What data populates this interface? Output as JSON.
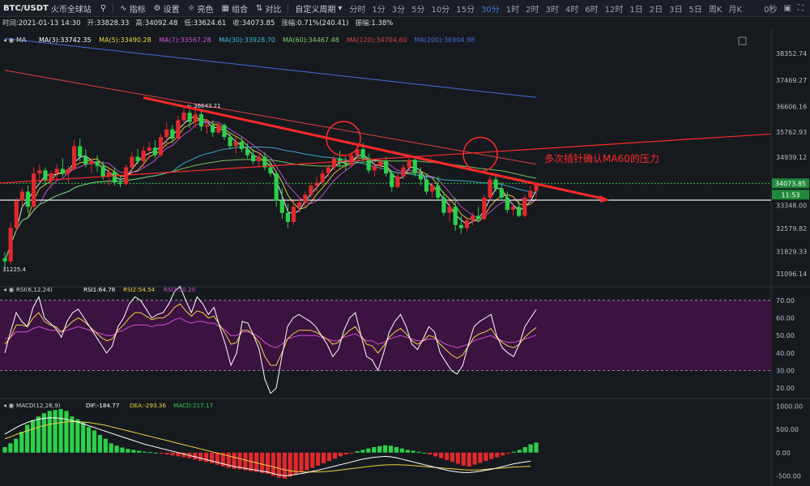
{
  "toolbar": {
    "pair": "BTC/USDT",
    "exchange": "火币全球站",
    "indicators_label": "指标",
    "settings_label": "设置",
    "theme_label": "亮色",
    "combine_label": "组合",
    "compare_label": "对比",
    "custom_period_label": "自定义周期",
    "periods": [
      "分时",
      "1分",
      "3分",
      "5分",
      "10分",
      "15分",
      "30分",
      "1时",
      "2时",
      "3时",
      "4时",
      "6时",
      "12时",
      "1日",
      "2日",
      "3日",
      "5日",
      "周K",
      "月K"
    ],
    "active_period": "30分",
    "countdown": "0秒"
  },
  "info": {
    "time_label": "时间:",
    "time": "2021-01-13 14:30",
    "open_label": "开:",
    "open": "33828.33",
    "high_label": "高:",
    "high": "34092.48",
    "low_label": "低:",
    "low": "33624.61",
    "close_label": "收:",
    "close": "34073.85",
    "change_label": "涨幅:",
    "change": "0.71%(240.41)",
    "amplitude_label": "振幅:",
    "amplitude": "1.38%"
  },
  "colors": {
    "up": "#e0292d",
    "down": "#2bd14a",
    "bg": "#161a1e",
    "ma3": "#ffffff",
    "ma5": "#f3d142",
    "ma7": "#d050d8",
    "ma30": "#3db6d6",
    "ma60": "#7fd066",
    "ma120": "#d8423e",
    "ma200": "#3f6fd0",
    "rsi1": "#ffffff",
    "rsi2": "#f3d142",
    "rsi3": "#d050d8",
    "dif": "#ffffff",
    "dea": "#f3d142",
    "annotation": "#ff2a2a"
  },
  "chart_data": [
    {
      "type": "candlestick",
      "title": "MA",
      "legend": [
        {
          "name": "MA(3)",
          "value": "33742.35"
        },
        {
          "name": "MA(5)",
          "value": "33490.28"
        },
        {
          "name": "MA(7)",
          "value": "33567.28"
        },
        {
          "name": "MA(30)",
          "value": "33928.70"
        },
        {
          "name": "MA(60)",
          "value": "34467.48"
        },
        {
          "name": "MA(120)",
          "value": "34704.60"
        },
        {
          "name": "MA(200)",
          "value": "36904.98"
        }
      ],
      "ylim": [
        30850,
        39050
      ],
      "ticks": [
        "38352.74",
        "37469.27",
        "36606.16",
        "35762.93",
        "34939.12",
        "34073.85",
        "33348.00",
        "32579.82",
        "31829.33",
        "31096.14"
      ],
      "tick_values": [
        38352.74,
        37469.27,
        36606.16,
        35762.93,
        34939.12,
        34073.85,
        33348.0,
        32579.82,
        31829.33,
        31096.14
      ],
      "last_price": "34073.85",
      "last_price_value": 34073.85,
      "countdown": "11:53",
      "horizontal_level": 33520,
      "annotation": "多次插针确认MA60的压力",
      "max_label": "← 36643.21",
      "min_label": "31225.4",
      "max_value": 36643.21,
      "min_value": 31225.4,
      "ohlc": [
        [
          31600,
          31800,
          31225,
          31500
        ],
        [
          31500,
          32800,
          31400,
          32600
        ],
        [
          32600,
          33600,
          32500,
          33500
        ],
        [
          33500,
          33900,
          33300,
          33800
        ],
        [
          33800,
          34000,
          33100,
          33300
        ],
        [
          33300,
          34600,
          33200,
          34400
        ],
        [
          34400,
          34700,
          34100,
          34500
        ],
        [
          34500,
          34600,
          34000,
          34150
        ],
        [
          34150,
          34500,
          33900,
          34400
        ],
        [
          34400,
          34700,
          34200,
          34550
        ],
        [
          34550,
          34900,
          34300,
          34400
        ],
        [
          34400,
          34650,
          34100,
          34550
        ],
        [
          34550,
          35500,
          34500,
          35300
        ],
        [
          35300,
          35550,
          34800,
          34950
        ],
        [
          34950,
          35200,
          34600,
          34700
        ],
        [
          34700,
          34900,
          34400,
          34800
        ],
        [
          34800,
          35000,
          34450,
          34650
        ],
        [
          34650,
          34800,
          34200,
          34300
        ],
        [
          34300,
          34550,
          34000,
          34450
        ],
        [
          34450,
          34600,
          34000,
          34100
        ],
        [
          34100,
          34300,
          33950,
          34050
        ],
        [
          34050,
          34700,
          34000,
          34600
        ],
        [
          34600,
          35100,
          34500,
          34950
        ],
        [
          34950,
          35200,
          34700,
          34800
        ],
        [
          34800,
          35300,
          34600,
          35150
        ],
        [
          35150,
          35450,
          34900,
          35250
        ],
        [
          35250,
          35500,
          34900,
          35000
        ],
        [
          35000,
          35700,
          34950,
          35600
        ],
        [
          35600,
          36100,
          35300,
          35850
        ],
        [
          35850,
          36000,
          35400,
          35550
        ],
        [
          35550,
          36300,
          35500,
          36150
        ],
        [
          36150,
          36650,
          36000,
          36400
        ],
        [
          36400,
          36500,
          35900,
          36100
        ],
        [
          36100,
          36600,
          35900,
          36350
        ],
        [
          36350,
          36450,
          35800,
          35950
        ],
        [
          35950,
          36200,
          35700,
          36000
        ],
        [
          36000,
          36150,
          35600,
          35750
        ],
        [
          35750,
          36100,
          35700,
          36000
        ],
        [
          36000,
          36050,
          35500,
          35600
        ],
        [
          35600,
          35750,
          35200,
          35300
        ],
        [
          35300,
          35600,
          35050,
          35450
        ],
        [
          35450,
          35600,
          35100,
          35200
        ],
        [
          35200,
          35400,
          34900,
          35000
        ],
        [
          35000,
          35200,
          34700,
          34800
        ],
        [
          34800,
          35100,
          34600,
          34950
        ],
        [
          34950,
          35100,
          34500,
          34600
        ],
        [
          34600,
          34800,
          34300,
          34400
        ],
        [
          34400,
          34500,
          33300,
          33500
        ],
        [
          33500,
          33900,
          32900,
          33100
        ],
        [
          33100,
          33400,
          32600,
          32800
        ],
        [
          32800,
          33500,
          32700,
          33300
        ],
        [
          33300,
          33600,
          33100,
          33450
        ],
        [
          33450,
          33800,
          33300,
          33700
        ],
        [
          33700,
          34100,
          33600,
          34000
        ],
        [
          34000,
          34300,
          33800,
          34100
        ],
        [
          34100,
          34500,
          34000,
          34400
        ],
        [
          34400,
          34700,
          34300,
          34600
        ],
        [
          34600,
          35000,
          34500,
          34900
        ],
        [
          34900,
          35150,
          34600,
          34750
        ],
        [
          34750,
          34950,
          34500,
          34700
        ],
        [
          34700,
          35100,
          34600,
          35000
        ],
        [
          35000,
          35350,
          34900,
          35200
        ],
        [
          35200,
          35400,
          34800,
          34900
        ],
        [
          34900,
          35050,
          34400,
          34500
        ],
        [
          34500,
          34800,
          34300,
          34650
        ],
        [
          34650,
          34900,
          34500,
          34800
        ],
        [
          34800,
          34950,
          34300,
          34400
        ],
        [
          34400,
          34500,
          33800,
          33950
        ],
        [
          33950,
          34400,
          33900,
          34300
        ],
        [
          34300,
          34700,
          34200,
          34600
        ],
        [
          34600,
          34950,
          34500,
          34850
        ],
        [
          34850,
          34950,
          34300,
          34400
        ],
        [
          34400,
          34600,
          34000,
          34200
        ],
        [
          34200,
          34400,
          33700,
          33800
        ],
        [
          33800,
          34100,
          33600,
          34000
        ],
        [
          34000,
          34300,
          33500,
          33600
        ],
        [
          33600,
          33800,
          33000,
          33100
        ],
        [
          33100,
          33500,
          32800,
          33300
        ],
        [
          33300,
          33600,
          32500,
          32700
        ],
        [
          32700,
          33000,
          32400,
          32600
        ],
        [
          32600,
          32950,
          32500,
          32850
        ],
        [
          32850,
          33100,
          32700,
          33000
        ],
        [
          33000,
          33300,
          32800,
          32900
        ],
        [
          32900,
          33700,
          32850,
          33600
        ],
        [
          33600,
          34300,
          33500,
          34200
        ],
        [
          34200,
          34350,
          33800,
          33900
        ],
        [
          33900,
          34100,
          33500,
          33600
        ],
        [
          33600,
          33800,
          33100,
          33200
        ],
        [
          33200,
          33400,
          33000,
          33300
        ],
        [
          33300,
          33500,
          32950,
          33000
        ],
        [
          33000,
          33700,
          32950,
          33600
        ],
        [
          33600,
          34000,
          33500,
          33828
        ],
        [
          33828,
          34092,
          33624,
          34074
        ]
      ]
    },
    {
      "type": "line",
      "title": "RSI(6,12,24)",
      "series": [
        {
          "name": "RSI1",
          "latest": "64.78"
        },
        {
          "name": "RSI2",
          "latest": "54.54"
        },
        {
          "name": "RSI3",
          "latest": "50.20"
        }
      ],
      "ylim": [
        15,
        75
      ],
      "ticks": [
        "70.00",
        "60.00",
        "50.00",
        "40.00",
        "30.00",
        "20.00"
      ],
      "tick_values": [
        70,
        60,
        50,
        40,
        30,
        20
      ],
      "rsi1": [
        40,
        52,
        63,
        58,
        55,
        66,
        72,
        60,
        57,
        54,
        49,
        58,
        63,
        65,
        60,
        55,
        50,
        45,
        40,
        44,
        55,
        60,
        68,
        72,
        70,
        65,
        60,
        62,
        63,
        68,
        75,
        78,
        70,
        63,
        72,
        68,
        62,
        66,
        55,
        45,
        33,
        40,
        58,
        57,
        50,
        42,
        25,
        17,
        20,
        38,
        55,
        60,
        62,
        60,
        58,
        55,
        50,
        45,
        38,
        42,
        53,
        60,
        63,
        50,
        38,
        36,
        30,
        40,
        52,
        58,
        62,
        55,
        45,
        42,
        48,
        55,
        52,
        40,
        35,
        30,
        28,
        33,
        45,
        55,
        58,
        60,
        62,
        50,
        43,
        40,
        38,
        45,
        55,
        60,
        64.78
      ],
      "rsi2": [
        45,
        49,
        56,
        56,
        55,
        60,
        63,
        58,
        56,
        55,
        52,
        55,
        58,
        60,
        58,
        55,
        52,
        49,
        47,
        48,
        53,
        56,
        60,
        63,
        63,
        61,
        59,
        60,
        60,
        62,
        66,
        68,
        64,
        61,
        64,
        63,
        60,
        61,
        56,
        51,
        45,
        46,
        53,
        53,
        50,
        46,
        38,
        33,
        33,
        40,
        48,
        51,
        53,
        53,
        53,
        52,
        50,
        48,
        45,
        46,
        50,
        53,
        55,
        50,
        45,
        44,
        40,
        44,
        49,
        52,
        54,
        51,
        47,
        45,
        47,
        50,
        49,
        45,
        42,
        39,
        37,
        39,
        44,
        49,
        51,
        52,
        54,
        49,
        46,
        44,
        43,
        45,
        49,
        52,
        54.54
      ],
      "rsi3": [
        48,
        49,
        52,
        52,
        52,
        54,
        55,
        54,
        53,
        53,
        52,
        53,
        54,
        55,
        54,
        53,
        52,
        51,
        50,
        50,
        52,
        53,
        55,
        56,
        56,
        56,
        55,
        56,
        56,
        57,
        59,
        60,
        58,
        57,
        58,
        58,
        57,
        57,
        55,
        53,
        50,
        50,
        52,
        52,
        51,
        49,
        46,
        44,
        43,
        45,
        48,
        49,
        50,
        50,
        50,
        50,
        49,
        48,
        47,
        47,
        49,
        50,
        51,
        49,
        47,
        47,
        45,
        46,
        48,
        49,
        50,
        49,
        48,
        47,
        47,
        48,
        48,
        47,
        45,
        44,
        43,
        44,
        45,
        47,
        48,
        49,
        50,
        48,
        47,
        46,
        46,
        47,
        48,
        49,
        50.2
      ]
    },
    {
      "type": "bar",
      "title": "MACD(12,26,9)",
      "series": [
        {
          "name": "DIF",
          "latest": "-184.77"
        },
        {
          "name": "DEA",
          "latest": "-293.36"
        },
        {
          "name": "MACD",
          "latest": "217.17"
        }
      ],
      "ylim": [
        -650,
        1150
      ],
      "ticks": [
        "1000.00",
        "500.00",
        "0.00",
        "-500.00"
      ],
      "tick_values": [
        1000,
        500,
        0,
        -500
      ],
      "macd": [
        120,
        200,
        300,
        450,
        600,
        700,
        780,
        850,
        900,
        920,
        940,
        900,
        780,
        720,
        650,
        550,
        480,
        380,
        300,
        200,
        150,
        110,
        80,
        60,
        40,
        20,
        10,
        0,
        -20,
        -40,
        -60,
        -80,
        -100,
        -120,
        -150,
        -180,
        -200,
        -230,
        -260,
        -300,
        -330,
        -350,
        -360,
        -380,
        -400,
        -420,
        -440,
        -460,
        -500,
        -540,
        -560,
        -520,
        -470,
        -420,
        -380,
        -330,
        -280,
        -230,
        -180,
        -130,
        -80,
        -40,
        -10,
        30,
        60,
        90,
        120,
        140,
        160,
        150,
        120,
        90,
        60,
        40,
        20,
        0,
        -40,
        -80,
        -120,
        -160,
        -200,
        -240,
        -280,
        -300,
        -260,
        -220,
        -180,
        -140,
        -100,
        -60,
        -20,
        20,
        60,
        120,
        180,
        217.17
      ],
      "dif": [
        400,
        470,
        540,
        600,
        650,
        690,
        720,
        740,
        750,
        750,
        740,
        720,
        690,
        660,
        620,
        580,
        540,
        500,
        460,
        420,
        380,
        340,
        300,
        260,
        220,
        180,
        150,
        120,
        90,
        60,
        30,
        0,
        -30,
        -60,
        -90,
        -120,
        -150,
        -180,
        -210,
        -240,
        -270,
        -300,
        -320,
        -340,
        -360,
        -380,
        -400,
        -420,
        -450,
        -480,
        -500,
        -490,
        -470,
        -450,
        -430,
        -400,
        -380,
        -350,
        -320,
        -290,
        -260,
        -230,
        -200,
        -170,
        -140,
        -120,
        -100,
        -90,
        -80,
        -90,
        -110,
        -140,
        -170,
        -200,
        -230,
        -260,
        -290,
        -320,
        -350,
        -380,
        -400,
        -420,
        -430,
        -430,
        -420,
        -400,
        -380,
        -360,
        -330,
        -300,
        -270,
        -240,
        -220,
        -200,
        -184.77
      ],
      "dea": [
        300,
        340,
        390,
        430,
        470,
        510,
        550,
        580,
        610,
        630,
        650,
        660,
        670,
        670,
        660,
        650,
        630,
        610,
        590,
        560,
        530,
        500,
        470,
        440,
        410,
        380,
        350,
        320,
        290,
        260,
        230,
        200,
        170,
        140,
        110,
        80,
        50,
        20,
        -10,
        -40,
        -70,
        -100,
        -130,
        -160,
        -190,
        -220,
        -250,
        -280,
        -310,
        -340,
        -370,
        -390,
        -405,
        -415,
        -420,
        -420,
        -415,
        -410,
        -400,
        -390,
        -375,
        -360,
        -345,
        -330,
        -315,
        -300,
        -285,
        -275,
        -265,
        -260,
        -260,
        -265,
        -270,
        -280,
        -290,
        -300,
        -310,
        -320,
        -330,
        -340,
        -350,
        -360,
        -370,
        -375,
        -375,
        -370,
        -360,
        -350,
        -340,
        -330,
        -320,
        -310,
        -305,
        -300,
        -293.36
      ]
    }
  ]
}
